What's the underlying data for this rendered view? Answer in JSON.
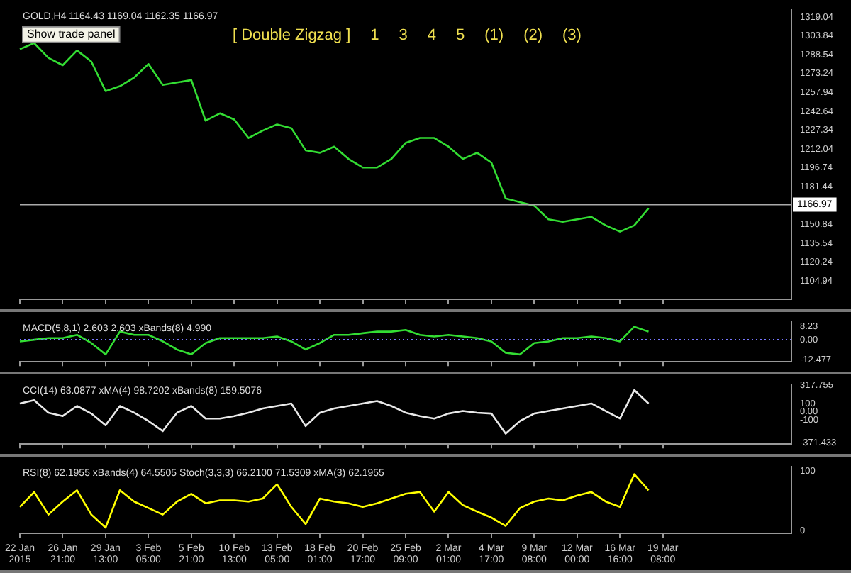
{
  "chart_data": [
    {
      "type": "line",
      "title": "GOLD,H4 1164.43 1169.04 1162.35 1166.97",
      "series": [
        {
          "color": "#33dd33",
          "values": [
            1293,
            1298,
            1286,
            1280,
            1292,
            1283,
            1259,
            1263,
            1270,
            1281,
            1264,
            1266,
            1268,
            1235,
            1241,
            1236,
            1221,
            1227,
            1232,
            1229,
            1211,
            1209,
            1214,
            1204,
            1197,
            1197,
            1204,
            1217,
            1221,
            1221,
            1214,
            1204,
            1209,
            1201,
            1172,
            1169,
            1166,
            1155,
            1153,
            1155,
            1157,
            1150,
            1145,
            1150,
            1164,
            null,
            null,
            null,
            null,
            null,
            null,
            null,
            null,
            null,
            null
          ]
        }
      ],
      "ylim": [
        1090,
        1325
      ],
      "yticks": [
        1319.04,
        1303.84,
        1288.54,
        1273.24,
        1257.94,
        1242.64,
        1227.34,
        1212.04,
        1196.74,
        1181.44,
        1150.84,
        1135.54,
        1120.24,
        1104.94
      ],
      "tick_labels": "y",
      "ref_lines": [
        {
          "axis": "y",
          "value": 1166.97,
          "label": "1166.97",
          "color": "#aaaaaa"
        }
      ],
      "annotations": [
        "Show trade panel",
        "[ Double Zigzag ]",
        "1",
        "3",
        "4",
        "5",
        "(1)",
        "(2)",
        "(3)"
      ]
    },
    {
      "type": "line",
      "title": "MACD(5,8,1) 2.603 2.603 xBands(8) 4.990",
      "series": [
        {
          "color": "#33dd33",
          "values": [
            -1,
            0,
            1,
            1,
            3,
            -2,
            -9,
            5,
            3,
            3,
            -1,
            -6,
            -9,
            -2,
            1,
            1,
            1,
            1,
            2,
            -1,
            -6,
            -2,
            3,
            3,
            4,
            5,
            5,
            6,
            3,
            2,
            3,
            2,
            1,
            -1,
            -8,
            -9,
            -2,
            -1,
            1,
            1,
            2,
            1,
            -1,
            8,
            5,
            null,
            null,
            null,
            null,
            null,
            null,
            null,
            null,
            null,
            null
          ]
        }
      ],
      "ylim": [
        -13.5,
        11
      ],
      "yticks": [
        8.23,
        {
          "value": 0,
          "label": "0.00"
        },
        -12.477
      ],
      "tick_labels": "y",
      "ref_lines": [
        {
          "axis": "y",
          "value": 0,
          "color": "#7777ff",
          "line_style": "dotted"
        }
      ]
    },
    {
      "type": "line",
      "title": "CCI(14) 63.0877 xMA(4) 98.7202 xBands(8) 159.5076",
      "series": [
        {
          "color": "#e8e8e8",
          "values": [
            100,
            140,
            -10,
            -50,
            70,
            -20,
            -160,
            70,
            -10,
            -110,
            -230,
            -10,
            70,
            -80,
            -80,
            -50,
            -10,
            40,
            70,
            100,
            -170,
            -10,
            40,
            70,
            100,
            130,
            70,
            -10,
            -50,
            -80,
            -20,
            10,
            -10,
            -20,
            -260,
            -110,
            -20,
            10,
            40,
            70,
            100,
            10,
            -80,
            260,
            100,
            null,
            null,
            null,
            null,
            null,
            null,
            null,
            null,
            null,
            null
          ]
        }
      ],
      "ylim": [
        -385,
        330
      ],
      "yticks": [
        317.755,
        100,
        {
          "value": 0,
          "label": "0.00"
        },
        -100,
        -371.433
      ],
      "tick_labels": "y"
    },
    {
      "type": "line",
      "title": "RSI(8) 62.1955 xBands(4) 64.5505 Stoch(3,3,3) 66.2100 71.5309 xMA(3) 62.1955",
      "categories": [
        "22 Jan 2015",
        null,
        null,
        "26 Jan 21:00",
        null,
        null,
        "29 Jan 13:00",
        null,
        null,
        "3 Feb 05:00",
        null,
        null,
        "5 Feb 21:00",
        null,
        null,
        "10 Feb 13:00",
        null,
        null,
        "13 Feb 05:00",
        null,
        null,
        "18 Feb 01:00",
        null,
        null,
        "20 Feb 17:00",
        null,
        null,
        "25 Feb 09:00",
        null,
        null,
        "2 Mar 01:00",
        null,
        null,
        "4 Mar 17:00",
        null,
        null,
        "9 Mar 08:00",
        null,
        null,
        "12 Mar 00:00",
        null,
        null,
        "16 Mar 16:00",
        null,
        null,
        "19 Mar 08:00",
        null,
        null,
        null,
        null,
        null,
        null,
        null,
        null,
        null
      ],
      "series": [
        {
          "color": "#ffff00",
          "values": [
            40,
            65,
            27,
            49,
            68,
            27,
            5,
            68,
            49,
            38,
            27,
            49,
            62,
            46,
            51,
            51,
            49,
            54,
            78,
            40,
            11,
            54,
            49,
            46,
            40,
            46,
            54,
            62,
            65,
            32,
            65,
            43,
            32,
            22,
            8,
            38,
            49,
            54,
            51,
            59,
            65,
            49,
            40,
            95,
            68,
            null,
            null,
            null,
            null,
            null,
            null,
            null,
            null,
            null,
            null
          ]
        }
      ],
      "ylim": [
        -5,
        108
      ],
      "yticks": [
        100,
        0
      ]
    }
  ]
}
